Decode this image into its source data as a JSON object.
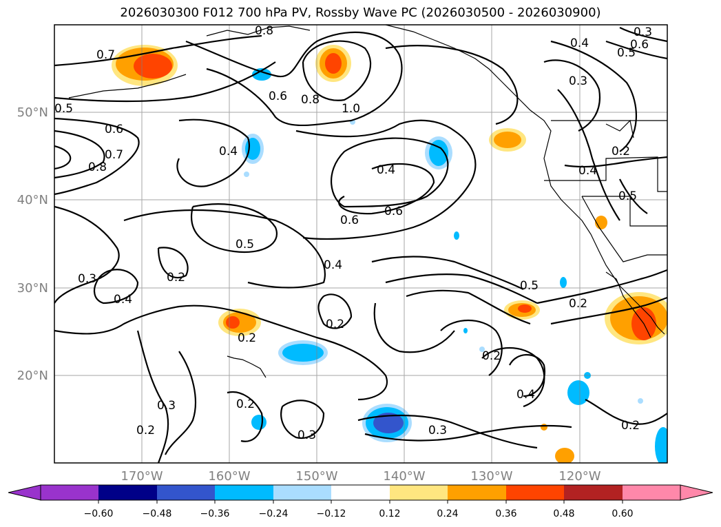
{
  "title": "2026030300 F012 700 hPa PV, Rossby Wave PC (2026030500 - 2026030900)",
  "lat_labels": [
    "50°N",
    "40°N",
    "30°N",
    "20°N"
  ],
  "lon_labels": [
    "170°W",
    "160°W",
    "150°W",
    "140°W",
    "130°W",
    "120°W"
  ],
  "contour_labels": [
    "0.7",
    "0.5",
    "0.6",
    "0.8",
    "0.7",
    "0.8",
    "0.6",
    "0.8",
    "1.0",
    "0.4",
    "0.4",
    "0.6",
    "0.6",
    "0.5",
    "0.4",
    "0.3",
    "0.4",
    "0.2",
    "0.2",
    "0.2",
    "0.3",
    "0.2",
    "0.2",
    "0.3",
    "0.2",
    "0.4",
    "0.5",
    "0.2",
    "0.3",
    "0.3",
    "0.4",
    "0.5",
    "0.4",
    "0.6",
    "0.5",
    "0.3",
    "0.2",
    "0.2"
  ],
  "colorbar": {
    "ticks": [
      "−0.60",
      "−0.48",
      "−0.36",
      "−0.24",
      "−0.12",
      "0.12",
      "0.24",
      "0.36",
      "0.48",
      "0.60"
    ],
    "colors": [
      "#9933cc",
      "#000088",
      "#3355cc",
      "#00bbff",
      "#aaddff",
      "#ffffff",
      "#ffe680",
      "#ffa000",
      "#ff4400",
      "#b22222",
      "#ff88aa"
    ]
  }
}
